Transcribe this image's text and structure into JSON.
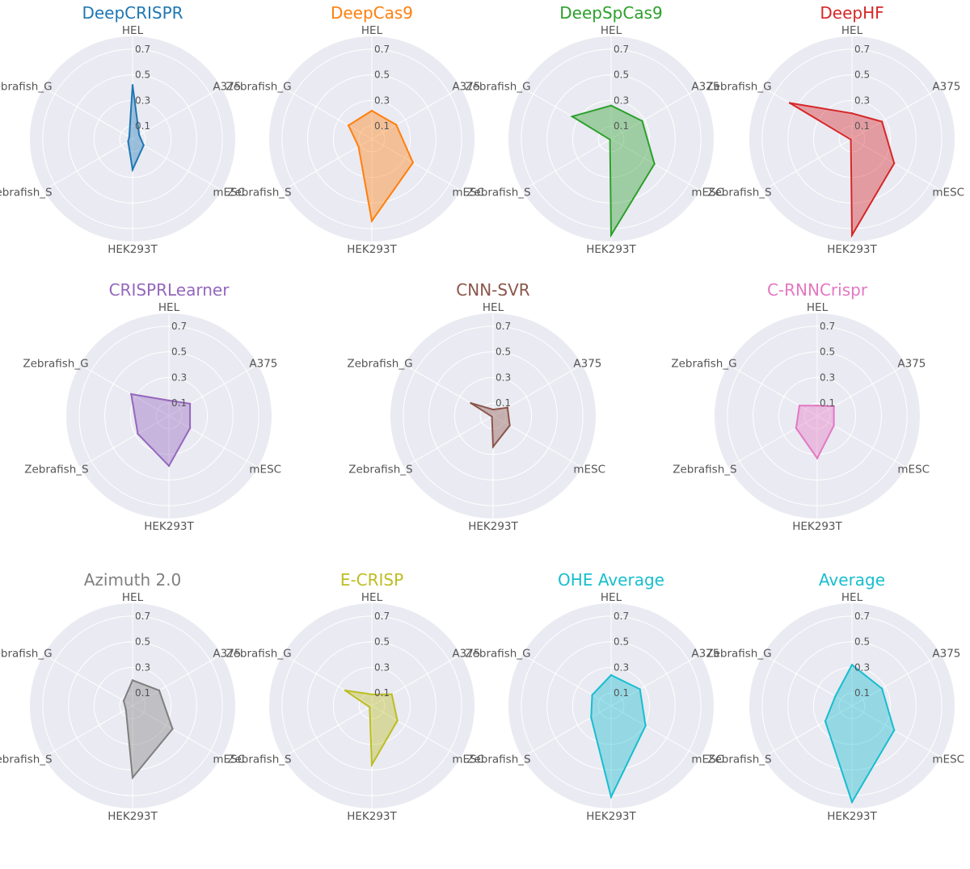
{
  "chart_data": [
    {
      "type": "radar",
      "title": "DeepCRISPR",
      "color": "#1f77b4",
      "axes": [
        "HEL",
        "A375",
        "mESC",
        "HEK293T",
        "Zebrafish_S",
        "Zebrafish_G"
      ],
      "ticks": [
        0.1,
        0.3,
        0.5,
        0.7
      ],
      "rlim": [
        0,
        0.8
      ],
      "grid": true,
      "values": [
        0.42,
        0.06,
        0.1,
        0.24,
        0.04,
        0.03
      ]
    },
    {
      "type": "radar",
      "title": "DeepCas9",
      "color": "#ff7f0e",
      "axes": [
        "HEL",
        "A375",
        "mESC",
        "HEK293T",
        "Zebrafish_S",
        "Zebrafish_G"
      ],
      "ticks": [
        0.1,
        0.3,
        0.5,
        0.7
      ],
      "rlim": [
        0,
        0.8
      ],
      "grid": true,
      "values": [
        0.22,
        0.22,
        0.37,
        0.64,
        0.12,
        0.21
      ]
    },
    {
      "type": "radar",
      "title": "DeepSpCas9",
      "color": "#2ca02c",
      "axes": [
        "HEL",
        "A375",
        "mESC",
        "HEK293T",
        "Zebrafish_S",
        "Zebrafish_G"
      ],
      "ticks": [
        0.1,
        0.3,
        0.5,
        0.7
      ],
      "rlim": [
        0,
        0.8
      ],
      "grid": true,
      "values": [
        0.26,
        0.28,
        0.39,
        0.75,
        0.01,
        0.35
      ]
    },
    {
      "type": "radar",
      "title": "DeepHF",
      "color": "#d62728",
      "axes": [
        "HEL",
        "A375",
        "mESC",
        "HEK293T",
        "Zebrafish_S",
        "Zebrafish_G"
      ],
      "ticks": [
        0.1,
        0.3,
        0.5,
        0.7
      ],
      "rlim": [
        0,
        0.8
      ],
      "grid": true,
      "values": [
        0.2,
        0.27,
        0.38,
        0.75,
        0.01,
        0.56
      ]
    },
    {
      "type": "radar",
      "title": "CRISPRLearner",
      "color": "#9467bd",
      "axes": [
        "HEL",
        "A375",
        "mESC",
        "HEK293T",
        "Zebrafish_S",
        "Zebrafish_G"
      ],
      "ticks": [
        0.1,
        0.3,
        0.5,
        0.7
      ],
      "rlim": [
        0,
        0.8
      ],
      "grid": true,
      "values": [
        0.12,
        0.19,
        0.19,
        0.39,
        0.28,
        0.34
      ]
    },
    {
      "type": "radar",
      "title": "CNN-SVR",
      "color": "#8c564b",
      "axes": [
        "HEL",
        "A375",
        "mESC",
        "HEK293T",
        "Zebrafish_S",
        "Zebrafish_G"
      ],
      "ticks": [
        0.1,
        0.3,
        0.5,
        0.7
      ],
      "rlim": [
        0,
        0.8
      ],
      "grid": true,
      "values": [
        0.05,
        0.13,
        0.15,
        0.24,
        0.01,
        0.2
      ]
    },
    {
      "type": "radar",
      "title": "C-RNNCrispr",
      "color": "#e377c2",
      "axes": [
        "HEL",
        "A375",
        "mESC",
        "HEK293T",
        "Zebrafish_S",
        "Zebrafish_G"
      ],
      "ticks": [
        0.1,
        0.3,
        0.5,
        0.7
      ],
      "rlim": [
        0,
        0.8
      ],
      "grid": true,
      "values": [
        0.08,
        0.15,
        0.15,
        0.33,
        0.19,
        0.16
      ]
    },
    {
      "type": "radar",
      "title": "Azimuth 2.0",
      "color": "#7f7f7f",
      "axes": [
        "HEL",
        "A375",
        "mESC",
        "HEK293T",
        "Zebrafish_S",
        "Zebrafish_G"
      ],
      "ticks": [
        0.1,
        0.3,
        0.5,
        0.7
      ],
      "rlim": [
        0,
        0.8
      ],
      "grid": true,
      "values": [
        0.2,
        0.24,
        0.36,
        0.56,
        0.06,
        0.08
      ]
    },
    {
      "type": "radar",
      "title": "E-CRISP",
      "color": "#bcbd22",
      "axes": [
        "HEL",
        "A375",
        "mESC",
        "HEK293T",
        "Zebrafish_S",
        "Zebrafish_G"
      ],
      "ticks": [
        0.1,
        0.3,
        0.5,
        0.7
      ],
      "rlim": [
        0,
        0.8
      ],
      "grid": true,
      "values": [
        0.09,
        0.18,
        0.23,
        0.46,
        0.02,
        0.24
      ]
    },
    {
      "type": "radar",
      "title": "OHE Average",
      "color": "#17becf",
      "axes": [
        "HEL",
        "A375",
        "mESC",
        "HEK293T",
        "Zebrafish_S",
        "Zebrafish_G"
      ],
      "ticks": [
        0.1,
        0.3,
        0.5,
        0.7
      ],
      "rlim": [
        0,
        0.8
      ],
      "grid": true,
      "values": [
        0.24,
        0.26,
        0.31,
        0.71,
        0.18,
        0.17
      ]
    },
    {
      "type": "radar",
      "title": "Average",
      "color": "#17becf",
      "axes": [
        "HEL",
        "A375",
        "mESC",
        "HEK293T",
        "Zebrafish_S",
        "Zebrafish_G"
      ],
      "ticks": [
        0.1,
        0.3,
        0.5,
        0.7
      ],
      "rlim": [
        0,
        0.8
      ],
      "grid": true,
      "values": [
        0.32,
        0.27,
        0.38,
        0.75,
        0.24,
        0.15
      ]
    }
  ]
}
